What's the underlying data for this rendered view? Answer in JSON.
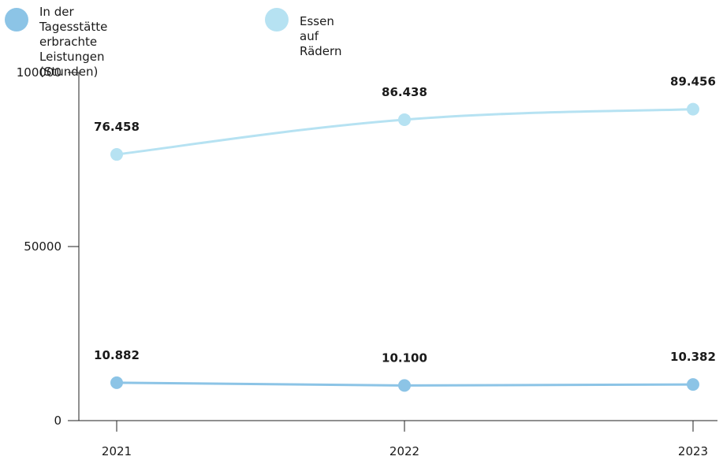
{
  "chart_data": {
    "type": "line",
    "x": [
      "2021",
      "2022",
      "2023"
    ],
    "ylim": [
      0,
      100000
    ],
    "yticks": [
      0,
      50000,
      100000
    ],
    "legend_position": "top-left",
    "series": [
      {
        "name": "In der Tagesstätte erbrachte Leistungen (Stunden)",
        "values": [
          10882,
          10100,
          10382
        ],
        "labels": [
          "10.882",
          "10.100",
          "10.382"
        ],
        "color": "#8cc4e6"
      },
      {
        "name": "Essen auf Rädern",
        "values": [
          76458,
          86438,
          89456
        ],
        "labels": [
          "76.458",
          "86.438",
          "89.456"
        ],
        "color": "#b6e2f2"
      }
    ]
  }
}
